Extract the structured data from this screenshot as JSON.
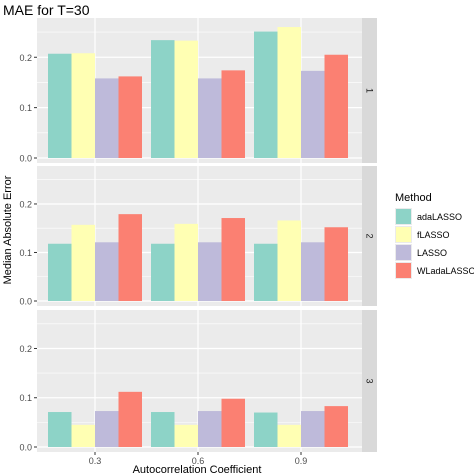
{
  "chart_data": {
    "type": "bar",
    "title": "MAE for T=30",
    "xlabel": "Autocorrelation Coefficient",
    "ylabel": "Median Absolute Error",
    "categories": [
      "0.3",
      "0.6",
      "0.9"
    ],
    "ylim": [
      0,
      0.27
    ],
    "yticks": [
      "0.0",
      "0.1",
      "0.2"
    ],
    "grid": true,
    "legend": {
      "title": "Method",
      "placement": "right",
      "items": [
        {
          "name": "adaLASSO",
          "color": "#8DD3C7"
        },
        {
          "name": "fLASSO",
          "color": "#FFFFB3"
        },
        {
          "name": "LASSO",
          "color": "#BEBADA"
        },
        {
          "name": "WLadaLASSO",
          "color": "#FB8072"
        }
      ]
    },
    "panels": [
      {
        "strip": "1",
        "series": [
          {
            "name": "adaLASSO",
            "values": [
              0.207,
              0.234,
              0.251
            ]
          },
          {
            "name": "fLASSO",
            "values": [
              0.208,
              0.233,
              0.26
            ]
          },
          {
            "name": "LASSO",
            "values": [
              0.158,
              0.158,
              0.173
            ]
          },
          {
            "name": "WLadaLASSO",
            "values": [
              0.162,
              0.174,
              0.205
            ]
          }
        ]
      },
      {
        "strip": "2",
        "series": [
          {
            "name": "adaLASSO",
            "values": [
              0.118,
              0.118,
              0.118
            ]
          },
          {
            "name": "fLASSO",
            "values": [
              0.157,
              0.159,
              0.166
            ]
          },
          {
            "name": "LASSO",
            "values": [
              0.121,
              0.121,
              0.121
            ]
          },
          {
            "name": "WLadaLASSO",
            "values": [
              0.179,
              0.171,
              0.152
            ]
          }
        ]
      },
      {
        "strip": "3",
        "series": [
          {
            "name": "adaLASSO",
            "values": [
              0.071,
              0.071,
              0.07
            ]
          },
          {
            "name": "fLASSO",
            "values": [
              0.045,
              0.045,
              0.045
            ]
          },
          {
            "name": "LASSO",
            "values": [
              0.073,
              0.073,
              0.073
            ]
          },
          {
            "name": "WLadaLASSO",
            "values": [
              0.112,
              0.098,
              0.083
            ]
          }
        ]
      }
    ]
  },
  "colors": {
    "panel_background": "#EBEBEB",
    "strip_background": "#D9D9D9",
    "gridline": "#FFFFFF",
    "text": "#333333"
  }
}
